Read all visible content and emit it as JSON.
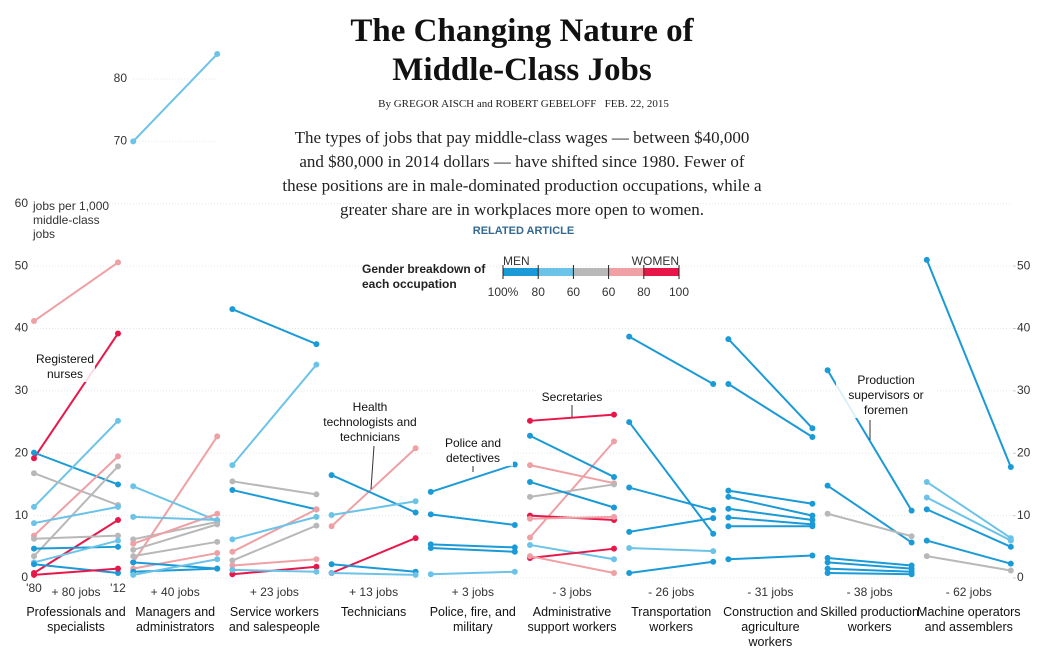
{
  "chart_data": {
    "type": "slope",
    "title": "The Changing Nature of Middle-Class Jobs",
    "byline": "By GREGOR AISCH and ROBERT GEBELOFF",
    "date": "FEB. 22, 2015",
    "description": "The types of jobs that pay middle-class wages — between $40,000 and $80,000 in 2014 dollars — have shifted since 1980. Fewer of these positions are in male-dominated production occupations, while a greater share are in workplaces more open to women.",
    "related": "RELATED ARTICLE",
    "y_label": "jobs per 1,000 middle-class jobs",
    "x": [
      "'80",
      "'12"
    ],
    "ylim": [
      0,
      80
    ],
    "yticks": [
      0,
      10,
      20,
      30,
      40,
      50,
      60,
      70,
      80
    ],
    "y2ticks": [
      0,
      10,
      20,
      30,
      40,
      50
    ],
    "legend": {
      "title": "Gender breakdown of each occupation",
      "left": "MEN",
      "right": "WOMEN",
      "ticks": [
        {
          "value": 100,
          "label": "100%"
        },
        80,
        60,
        60,
        80,
        100
      ],
      "colors": [
        "#1a9ad6",
        "#6cc3e8",
        "#b8b8b8",
        "#eea0a4",
        "#e8174a"
      ]
    },
    "annotations": [
      "Registered nurses",
      "Health technologists and technicians",
      "Police and detectives",
      "Secretaries",
      "Production supervisors or foremen"
    ],
    "panels": [
      {
        "name": "Professionals and specialists",
        "change": "+ 80 jobs",
        "series": [
          {
            "color": "#eea0a4",
            "values": [
              41.2,
              50.6
            ]
          },
          {
            "color": "#e8174a",
            "values": [
              19.2,
              39.2
            ]
          },
          {
            "color": "#1a9ad6",
            "values": [
              20.1,
              15
            ]
          },
          {
            "color": "#6cc3e8",
            "values": [
              11.4,
              25.2
            ]
          },
          {
            "color": "#b8b8b8",
            "values": [
              16.8,
              11.7
            ]
          },
          {
            "color": "#b8b8b8",
            "values": [
              3.5,
              17.9
            ]
          },
          {
            "color": "#eea0a4",
            "values": [
              6.8,
              19.5
            ]
          },
          {
            "color": "#6cc3e8",
            "values": [
              8.8,
              11.4
            ]
          },
          {
            "color": "#e8174a",
            "values": [
              0.8,
              9.3
            ]
          },
          {
            "color": "#1a9ad6",
            "values": [
              4.7,
              5.0
            ]
          },
          {
            "color": "#b8b8b8",
            "values": [
              6.3,
              6.8
            ]
          },
          {
            "color": "#6cc3e8",
            "values": [
              2.5,
              6.0
            ]
          },
          {
            "color": "#1a9ad6",
            "values": [
              2.2,
              0.8
            ]
          },
          {
            "color": "#e8174a",
            "values": [
              0.5,
              1.5
            ]
          }
        ]
      },
      {
        "name": "Managers and administrators",
        "change": "+ 40 jobs",
        "series": [
          {
            "color": "#6cc3e8",
            "values": [
              70,
              84
            ]
          },
          {
            "color": "#eea0a4",
            "values": [
              2.5,
              22.7
            ]
          },
          {
            "color": "#6cc3e8",
            "values": [
              14.7,
              9.2
            ]
          },
          {
            "color": "#b8b8b8",
            "values": [
              6.2,
              9.0
            ]
          },
          {
            "color": "#eea0a4",
            "values": [
              5.5,
              10.3
            ]
          },
          {
            "color": "#6cc3e8",
            "values": [
              9.8,
              9.3
            ]
          },
          {
            "color": "#b8b8b8",
            "values": [
              4.5,
              8.6
            ]
          },
          {
            "color": "#b8b8b8",
            "values": [
              3.5,
              5.8
            ]
          },
          {
            "color": "#eea0a4",
            "values": [
              1.5,
              4.0
            ]
          },
          {
            "color": "#1a9ad6",
            "values": [
              2.5,
              1.5
            ]
          },
          {
            "color": "#1a9ad6",
            "values": [
              1.0,
              1.5
            ]
          },
          {
            "color": "#6cc3e8",
            "values": [
              0.5,
              3.0
            ]
          }
        ]
      },
      {
        "name": "Service workers and salespeople",
        "change": "+ 23 jobs",
        "series": [
          {
            "color": "#1a9ad6",
            "values": [
              43.1,
              37.5
            ]
          },
          {
            "color": "#6cc3e8",
            "values": [
              18.1,
              34.2
            ]
          },
          {
            "color": "#b8b8b8",
            "values": [
              15.5,
              13.4
            ]
          },
          {
            "color": "#1a9ad6",
            "values": [
              14.1,
              11.0
            ]
          },
          {
            "color": "#eea0a4",
            "values": [
              4.2,
              11.0
            ]
          },
          {
            "color": "#6cc3e8",
            "values": [
              6.2,
              9.8
            ]
          },
          {
            "color": "#b8b8b8",
            "values": [
              2.8,
              8.4
            ]
          },
          {
            "color": "#eea0a4",
            "values": [
              2.0,
              3.0
            ]
          },
          {
            "color": "#e8174a",
            "values": [
              0.6,
              1.8
            ]
          },
          {
            "color": "#6cc3e8",
            "values": [
              1.3,
              1.0
            ]
          }
        ]
      },
      {
        "name": "Technicians",
        "change": "+ 13 jobs",
        "series": [
          {
            "color": "#eea0a4",
            "values": [
              8.3,
              20.8
            ]
          },
          {
            "color": "#1a9ad6",
            "values": [
              16.5,
              10.5
            ]
          },
          {
            "color": "#6cc3e8",
            "values": [
              10.1,
              12.3
            ]
          },
          {
            "color": "#e8174a",
            "values": [
              0.8,
              6.4
            ]
          },
          {
            "color": "#1a9ad6",
            "values": [
              2.2,
              1.0
            ]
          },
          {
            "color": "#6cc3e8",
            "values": [
              0.8,
              0.5
            ]
          }
        ]
      },
      {
        "name": "Police, fire, and military",
        "change": "+ 3 jobs",
        "series": [
          {
            "color": "#1a9ad6",
            "values": [
              13.8,
              18.2
            ]
          },
          {
            "color": "#1a9ad6",
            "values": [
              10.2,
              8.5
            ]
          },
          {
            "color": "#1a9ad6",
            "values": [
              5.4,
              4.9
            ]
          },
          {
            "color": "#1a9ad6",
            "values": [
              4.8,
              4.2
            ]
          },
          {
            "color": "#6cc3e8",
            "values": [
              0.6,
              1.0
            ]
          }
        ]
      },
      {
        "name": "Administrative support workers",
        "change": "- 3 jobs",
        "series": [
          {
            "color": "#e8174a",
            "values": [
              25.2,
              26.2
            ]
          },
          {
            "color": "#eea0a4",
            "values": [
              6.5,
              21.9
            ]
          },
          {
            "color": "#1a9ad6",
            "values": [
              22.8,
              16.2
            ]
          },
          {
            "color": "#eea0a4",
            "values": [
              18.1,
              15.2
            ]
          },
          {
            "color": "#b8b8b8",
            "values": [
              13.0,
              15.0
            ]
          },
          {
            "color": "#1a9ad6",
            "values": [
              15.4,
              11.3
            ]
          },
          {
            "color": "#e8174a",
            "values": [
              10.0,
              9.3
            ]
          },
          {
            "color": "#eea0a4",
            "values": [
              9.5,
              9.8
            ]
          },
          {
            "color": "#6cc3e8",
            "values": [
              5.3,
              3.0
            ]
          },
          {
            "color": "#e8174a",
            "values": [
              3.2,
              4.7
            ]
          },
          {
            "color": "#eea0a4",
            "values": [
              3.5,
              0.8
            ]
          }
        ]
      },
      {
        "name": "Transportation workers",
        "change": "- 26 jobs",
        "series": [
          {
            "color": "#1a9ad6",
            "values": [
              38.7,
              31.1
            ]
          },
          {
            "color": "#1a9ad6",
            "values": [
              25.0,
              7.1
            ]
          },
          {
            "color": "#1a9ad6",
            "values": [
              14.5,
              10.9
            ]
          },
          {
            "color": "#1a9ad6",
            "values": [
              7.4,
              9.6
            ]
          },
          {
            "color": "#6cc3e8",
            "values": [
              4.8,
              4.3
            ]
          },
          {
            "color": "#1a9ad6",
            "values": [
              0.8,
              2.6
            ]
          }
        ]
      },
      {
        "name": "Construction and agriculture workers",
        "change": "- 31 jobs",
        "series": [
          {
            "color": "#1a9ad6",
            "values": [
              38.3,
              24.0
            ]
          },
          {
            "color": "#1a9ad6",
            "values": [
              31.1,
              22.6
            ]
          },
          {
            "color": "#1a9ad6",
            "values": [
              14.0,
              11.9
            ]
          },
          {
            "color": "#1a9ad6",
            "values": [
              13.0,
              10.0
            ]
          },
          {
            "color": "#1a9ad6",
            "values": [
              11.1,
              9.3
            ]
          },
          {
            "color": "#1a9ad6",
            "values": [
              9.7,
              8.6
            ]
          },
          {
            "color": "#1a9ad6",
            "values": [
              8.3,
              8.3
            ]
          },
          {
            "color": "#1a9ad6",
            "values": [
              3.0,
              3.6
            ]
          }
        ]
      },
      {
        "name": "Skilled production workers",
        "change": "- 38 jobs",
        "series": [
          {
            "color": "#1a9ad6",
            "values": [
              33.3,
              10.8
            ]
          },
          {
            "color": "#1a9ad6",
            "values": [
              14.8,
              5.7
            ]
          },
          {
            "color": "#b8b8b8",
            "values": [
              10.3,
              6.7
            ]
          },
          {
            "color": "#1a9ad6",
            "values": [
              3.2,
              2.0
            ]
          },
          {
            "color": "#1a9ad6",
            "values": [
              2.5,
              1.5
            ]
          },
          {
            "color": "#1a9ad6",
            "values": [
              1.5,
              1.0
            ]
          },
          {
            "color": "#1a9ad6",
            "values": [
              0.8,
              0.6
            ]
          }
        ]
      },
      {
        "name": "Machine operators and assemblers",
        "change": "- 62 jobs",
        "series": [
          {
            "color": "#1a9ad6",
            "values": [
              51.0,
              17.8
            ]
          },
          {
            "color": "#6cc3e8",
            "values": [
              15.4,
              6.4
            ]
          },
          {
            "color": "#6cc3e8",
            "values": [
              12.9,
              6.0
            ]
          },
          {
            "color": "#1a9ad6",
            "values": [
              11.0,
              5.0
            ]
          },
          {
            "color": "#1a9ad6",
            "values": [
              6.0,
              2.3
            ]
          },
          {
            "color": "#b8b8b8",
            "values": [
              3.5,
              1.2
            ]
          }
        ]
      }
    ]
  }
}
